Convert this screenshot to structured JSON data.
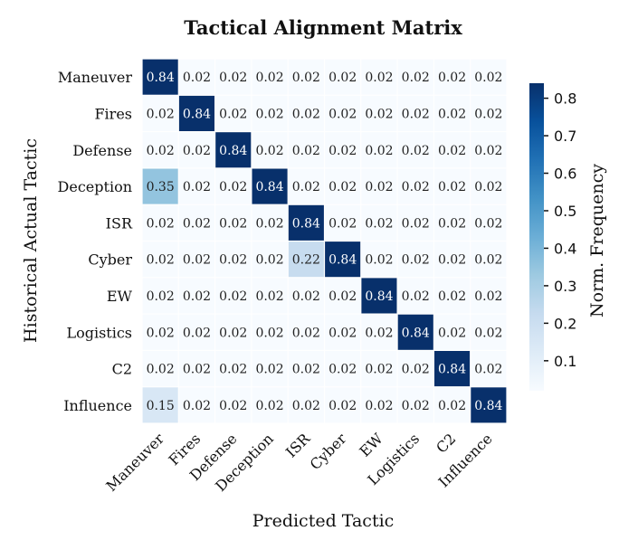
{
  "chart_data": {
    "type": "heatmap",
    "title": "Tactical Alignment Matrix",
    "xlabel": "Predicted Tactic",
    "ylabel": "Historical Actual Tactic",
    "row_labels": [
      "Maneuver",
      "Fires",
      "Defense",
      "Deception",
      "ISR",
      "Cyber",
      "EW",
      "Logistics",
      "C2",
      "Influence"
    ],
    "col_labels": [
      "Maneuver",
      "Fires",
      "Defense",
      "Deception",
      "ISR",
      "Cyber",
      "EW",
      "Logistics",
      "C2",
      "Influence"
    ],
    "values": [
      [
        0.84,
        0.02,
        0.02,
        0.02,
        0.02,
        0.02,
        0.02,
        0.02,
        0.02,
        0.02
      ],
      [
        0.02,
        0.84,
        0.02,
        0.02,
        0.02,
        0.02,
        0.02,
        0.02,
        0.02,
        0.02
      ],
      [
        0.02,
        0.02,
        0.84,
        0.02,
        0.02,
        0.02,
        0.02,
        0.02,
        0.02,
        0.02
      ],
      [
        0.35,
        0.02,
        0.02,
        0.84,
        0.02,
        0.02,
        0.02,
        0.02,
        0.02,
        0.02
      ],
      [
        0.02,
        0.02,
        0.02,
        0.02,
        0.84,
        0.02,
        0.02,
        0.02,
        0.02,
        0.02
      ],
      [
        0.02,
        0.02,
        0.02,
        0.02,
        0.22,
        0.84,
        0.02,
        0.02,
        0.02,
        0.02
      ],
      [
        0.02,
        0.02,
        0.02,
        0.02,
        0.02,
        0.02,
        0.84,
        0.02,
        0.02,
        0.02
      ],
      [
        0.02,
        0.02,
        0.02,
        0.02,
        0.02,
        0.02,
        0.02,
        0.84,
        0.02,
        0.02
      ],
      [
        0.02,
        0.02,
        0.02,
        0.02,
        0.02,
        0.02,
        0.02,
        0.02,
        0.84,
        0.02
      ],
      [
        0.15,
        0.02,
        0.02,
        0.02,
        0.02,
        0.02,
        0.02,
        0.02,
        0.02,
        0.84
      ]
    ],
    "value_format": "0.00",
    "colormap": "Blues",
    "colorbar": {
      "label": "Norm. Frequency",
      "range": [
        0.02,
        0.84
      ],
      "ticks": [
        0.1,
        0.2,
        0.3,
        0.4,
        0.5,
        0.6,
        0.7,
        0.8
      ],
      "tick_labels": [
        "0.1",
        "0.2",
        "0.3",
        "0.4",
        "0.5",
        "0.6",
        "0.7",
        "0.8"
      ]
    },
    "grid": false,
    "legend": "colorbar-right"
  }
}
